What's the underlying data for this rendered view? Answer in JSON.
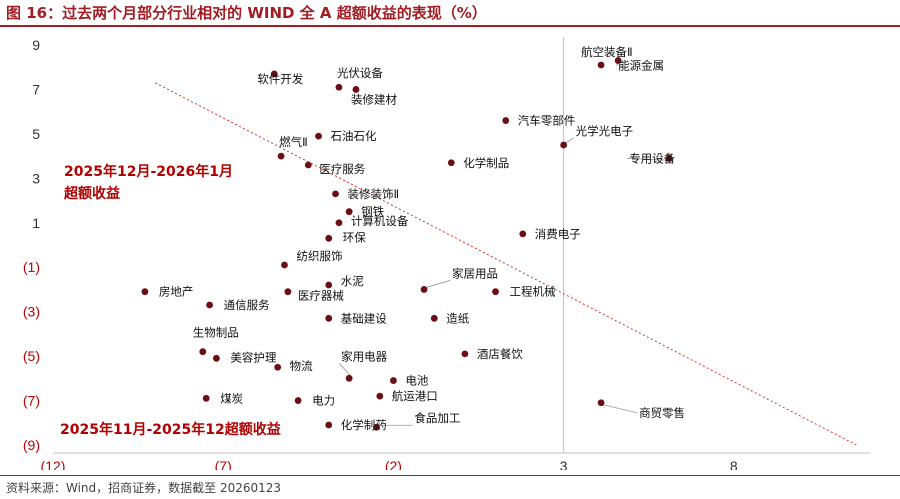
{
  "title": "图 16：过去两个月部分行业相对的 WIND 全 A 超额收益的表现（%）",
  "source": "资料来源：Wind，招商证券，数据截至 20260123",
  "colors": {
    "accent": "#a11d24",
    "point": "#6b0f14",
    "negative_tick": "#c00000",
    "trend": "#e03030"
  },
  "chart_data": {
    "type": "scatter",
    "title": "图 16：过去两个月部分行业相对的 WIND 全 A 超额收益的表现（%）",
    "xlabel": "2025年11月-2025年12超额收益",
    "ylabel": "2025年12月-2026年1月 超额收益",
    "ylabel_lines": [
      "2025年12月-2026年1月",
      "超额收益"
    ],
    "xlim": [
      -12,
      12
    ],
    "ylim": [
      -9,
      9
    ],
    "xticks": [
      -12,
      -7,
      -2,
      3,
      8
    ],
    "xtick_labels": [
      "(12)",
      "(7)",
      "(2)",
      "3",
      "8"
    ],
    "yticks": [
      9,
      7,
      5,
      3,
      1,
      -1,
      -3,
      -5,
      -7,
      -9
    ],
    "ytick_labels": [
      "9",
      "7",
      "5",
      "3",
      "1",
      "(1)",
      "(3)",
      "(5)",
      "(7)",
      "(9)"
    ],
    "grid": false,
    "trendline": [
      [
        -9,
        7.3
      ],
      [
        2.5,
        -1.4
      ],
      [
        11.6,
        -9.0
      ]
    ],
    "points": [
      {
        "name": "航空装备Ⅱ",
        "x": 4.1,
        "y": 8.1
      },
      {
        "name": "能源金属",
        "x": 4.6,
        "y": 8.3
      },
      {
        "name": "软件开发",
        "x": -5.5,
        "y": 7.7
      },
      {
        "name": "光伏设备",
        "x": -3.6,
        "y": 7.1
      },
      {
        "name": "装修建材",
        "x": -3.1,
        "y": 7.0
      },
      {
        "name": "汽车零部件",
        "x": 1.3,
        "y": 5.6
      },
      {
        "name": "光学光电子",
        "x": 3.0,
        "y": 4.5
      },
      {
        "name": "石油石化",
        "x": -4.2,
        "y": 4.9
      },
      {
        "name": "燃气Ⅱ",
        "x": -5.3,
        "y": 4.0
      },
      {
        "name": "医疗服务",
        "x": -4.5,
        "y": 3.6
      },
      {
        "name": "化学制品",
        "x": -0.3,
        "y": 3.7
      },
      {
        "name": "专用设备",
        "x": 6.1,
        "y": 3.9
      },
      {
        "name": "装修装饰Ⅱ",
        "x": -3.7,
        "y": 2.3
      },
      {
        "name": "钢铁",
        "x": -3.3,
        "y": 1.5
      },
      {
        "name": "计算机设备",
        "x": -3.6,
        "y": 1.0
      },
      {
        "name": "环保",
        "x": -3.9,
        "y": 0.3
      },
      {
        "name": "消费电子",
        "x": 1.8,
        "y": 0.5
      },
      {
        "name": "纺织服饰",
        "x": -5.2,
        "y": -0.9
      },
      {
        "name": "房地产",
        "x": -9.3,
        "y": -2.1
      },
      {
        "name": "通信服务",
        "x": -7.4,
        "y": -2.7
      },
      {
        "name": "水泥",
        "x": -3.9,
        "y": -1.8
      },
      {
        "name": "医疗器械",
        "x": -5.1,
        "y": -2.1
      },
      {
        "name": "家居用品",
        "x": -1.1,
        "y": -2.0
      },
      {
        "name": "工程机械",
        "x": 1.0,
        "y": -2.1
      },
      {
        "name": "基础建设",
        "x": -3.9,
        "y": -3.3
      },
      {
        "name": "造纸",
        "x": -0.8,
        "y": -3.3
      },
      {
        "name": "生物制品",
        "x": -7.6,
        "y": -4.8
      },
      {
        "name": "美容护理",
        "x": -7.2,
        "y": -5.1
      },
      {
        "name": "物流",
        "x": -5.4,
        "y": -5.5
      },
      {
        "name": "酒店餐饮",
        "x": 0.1,
        "y": -4.9
      },
      {
        "name": "家用电器",
        "x": -3.3,
        "y": -6.0
      },
      {
        "name": "电池",
        "x": -2.0,
        "y": -6.1
      },
      {
        "name": "航运港口",
        "x": -2.4,
        "y": -6.8
      },
      {
        "name": "煤炭",
        "x": -7.5,
        "y": -6.9
      },
      {
        "name": "电力",
        "x": -4.8,
        "y": -7.0
      },
      {
        "name": "商贸零售",
        "x": 4.1,
        "y": -7.1
      },
      {
        "name": "化学制药",
        "x": -3.9,
        "y": -8.1
      },
      {
        "name": "食品加工",
        "x": -2.5,
        "y": -8.2
      }
    ]
  }
}
